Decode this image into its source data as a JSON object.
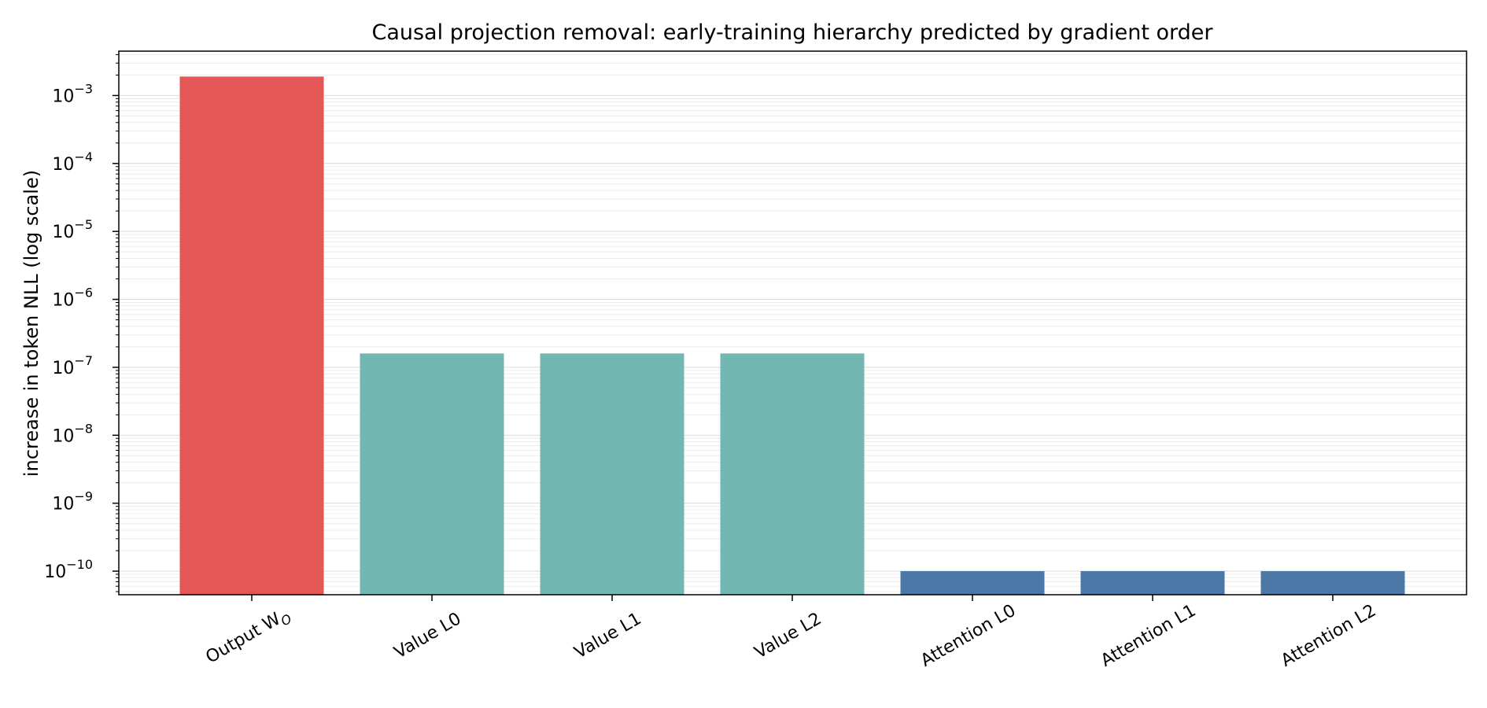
{
  "chart_data": {
    "type": "bar",
    "title": "Causal projection removal: early-training hierarchy predicted by gradient order",
    "xlabel": "",
    "ylabel": "increase in token NLL (log scale)",
    "yscale": "log",
    "ylim": [
      4.5e-11,
      0.0045
    ],
    "ytick_exponents": [
      -10,
      -9,
      -8,
      -7,
      -6,
      -5,
      -4,
      -3
    ],
    "grid": true,
    "categories": [
      "Output W",
      "Value L0",
      "Value L1",
      "Value L2",
      "Attention L0",
      "Attention L1",
      "Attention L2"
    ],
    "category_subscripts": [
      "O",
      "",
      "",
      "",
      "",
      "",
      ""
    ],
    "values": [
      0.0019,
      1.6e-07,
      1.6e-07,
      1.6e-07,
      1e-10,
      1e-10,
      1e-10
    ],
    "colors": [
      "#e45756",
      "#72b7b2",
      "#72b7b2",
      "#72b7b2",
      "#4c78a8",
      "#4c78a8",
      "#4c78a8"
    ]
  }
}
